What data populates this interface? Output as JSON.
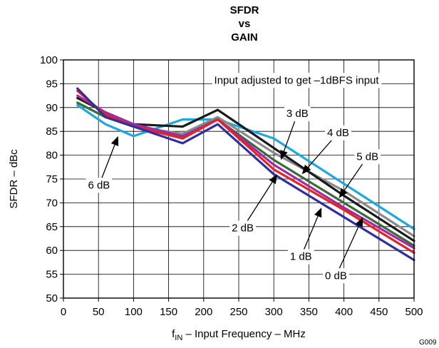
{
  "chart_data": {
    "type": "line",
    "title": [
      "SFDR",
      "vs",
      "GAIN"
    ],
    "xlabel": {
      "prefix": "f",
      "sub": "IN",
      "rest": " – Input Frequency – MHz"
    },
    "ylabel": "SFDR – dBc",
    "xlim": [
      0,
      500
    ],
    "ylim": [
      50,
      100
    ],
    "xticks": [
      0,
      50,
      100,
      150,
      200,
      250,
      300,
      350,
      400,
      450,
      500
    ],
    "yticks": [
      50,
      55,
      60,
      65,
      70,
      75,
      80,
      85,
      90,
      95,
      100
    ],
    "grid": true,
    "x": [
      20,
      60,
      100,
      170,
      220,
      300,
      400,
      500
    ],
    "series": [
      {
        "name": "6 dB",
        "color": "#1ea8e0",
        "values": [
          90.5,
          86.5,
          84.0,
          87.5,
          87.5,
          83.5,
          74.0,
          64.5
        ]
      },
      {
        "name": "5 dB",
        "color": "#8a8a8a",
        "values": [
          91.0,
          88.0,
          86.0,
          84.5,
          88.0,
          80.5,
          72.5,
          63.0
        ]
      },
      {
        "name": "4 dB",
        "color": "#1a1a1a",
        "values": [
          92.0,
          89.0,
          86.5,
          86.0,
          89.5,
          81.5,
          71.5,
          62.0
        ]
      },
      {
        "name": "3 dB",
        "color": "#3a6b3a",
        "values": [
          91.0,
          88.0,
          86.0,
          84.0,
          87.5,
          79.0,
          70.0,
          61.0
        ]
      },
      {
        "name": "2 dB",
        "color": "#9b2fa0",
        "values": [
          92.5,
          89.0,
          86.5,
          84.0,
          87.5,
          78.0,
          69.0,
          60.5
        ]
      },
      {
        "name": "1 dB",
        "color": "#e8202a",
        "values": [
          93.5,
          88.5,
          86.0,
          83.5,
          87.5,
          77.0,
          68.5,
          59.5
        ]
      },
      {
        "name": "0 dB",
        "color": "#2f2f9e",
        "values": [
          94.0,
          88.0,
          86.0,
          82.5,
          86.5,
          76.0,
          67.0,
          58.0
        ]
      }
    ],
    "annotations": [
      {
        "text": "Input adjusted to get –1dBFS input",
        "x": 215,
        "y": 95
      },
      {
        "text": "3 dB",
        "x": 318,
        "y": 88,
        "arrow_to": [
          310,
          79
        ]
      },
      {
        "text": "4 dB",
        "x": 376,
        "y": 84,
        "arrow_to": [
          340,
          76
        ]
      },
      {
        "text": "5 dB",
        "x": 418,
        "y": 79,
        "arrow_to": [
          393,
          71
        ]
      },
      {
        "text": "6 dB",
        "x": 35,
        "y": 73,
        "arrow_to": [
          78,
          84
        ]
      },
      {
        "text": "2 dB",
        "x": 240,
        "y": 64,
        "arrow_to": [
          305,
          76
        ]
      },
      {
        "text": "1 dB",
        "x": 323,
        "y": 58,
        "arrow_to": [
          368,
          69
        ]
      },
      {
        "text": "0 dB",
        "x": 373,
        "y": 54,
        "arrow_to": [
          427,
          67
        ]
      }
    ],
    "figure_id": "G009"
  }
}
